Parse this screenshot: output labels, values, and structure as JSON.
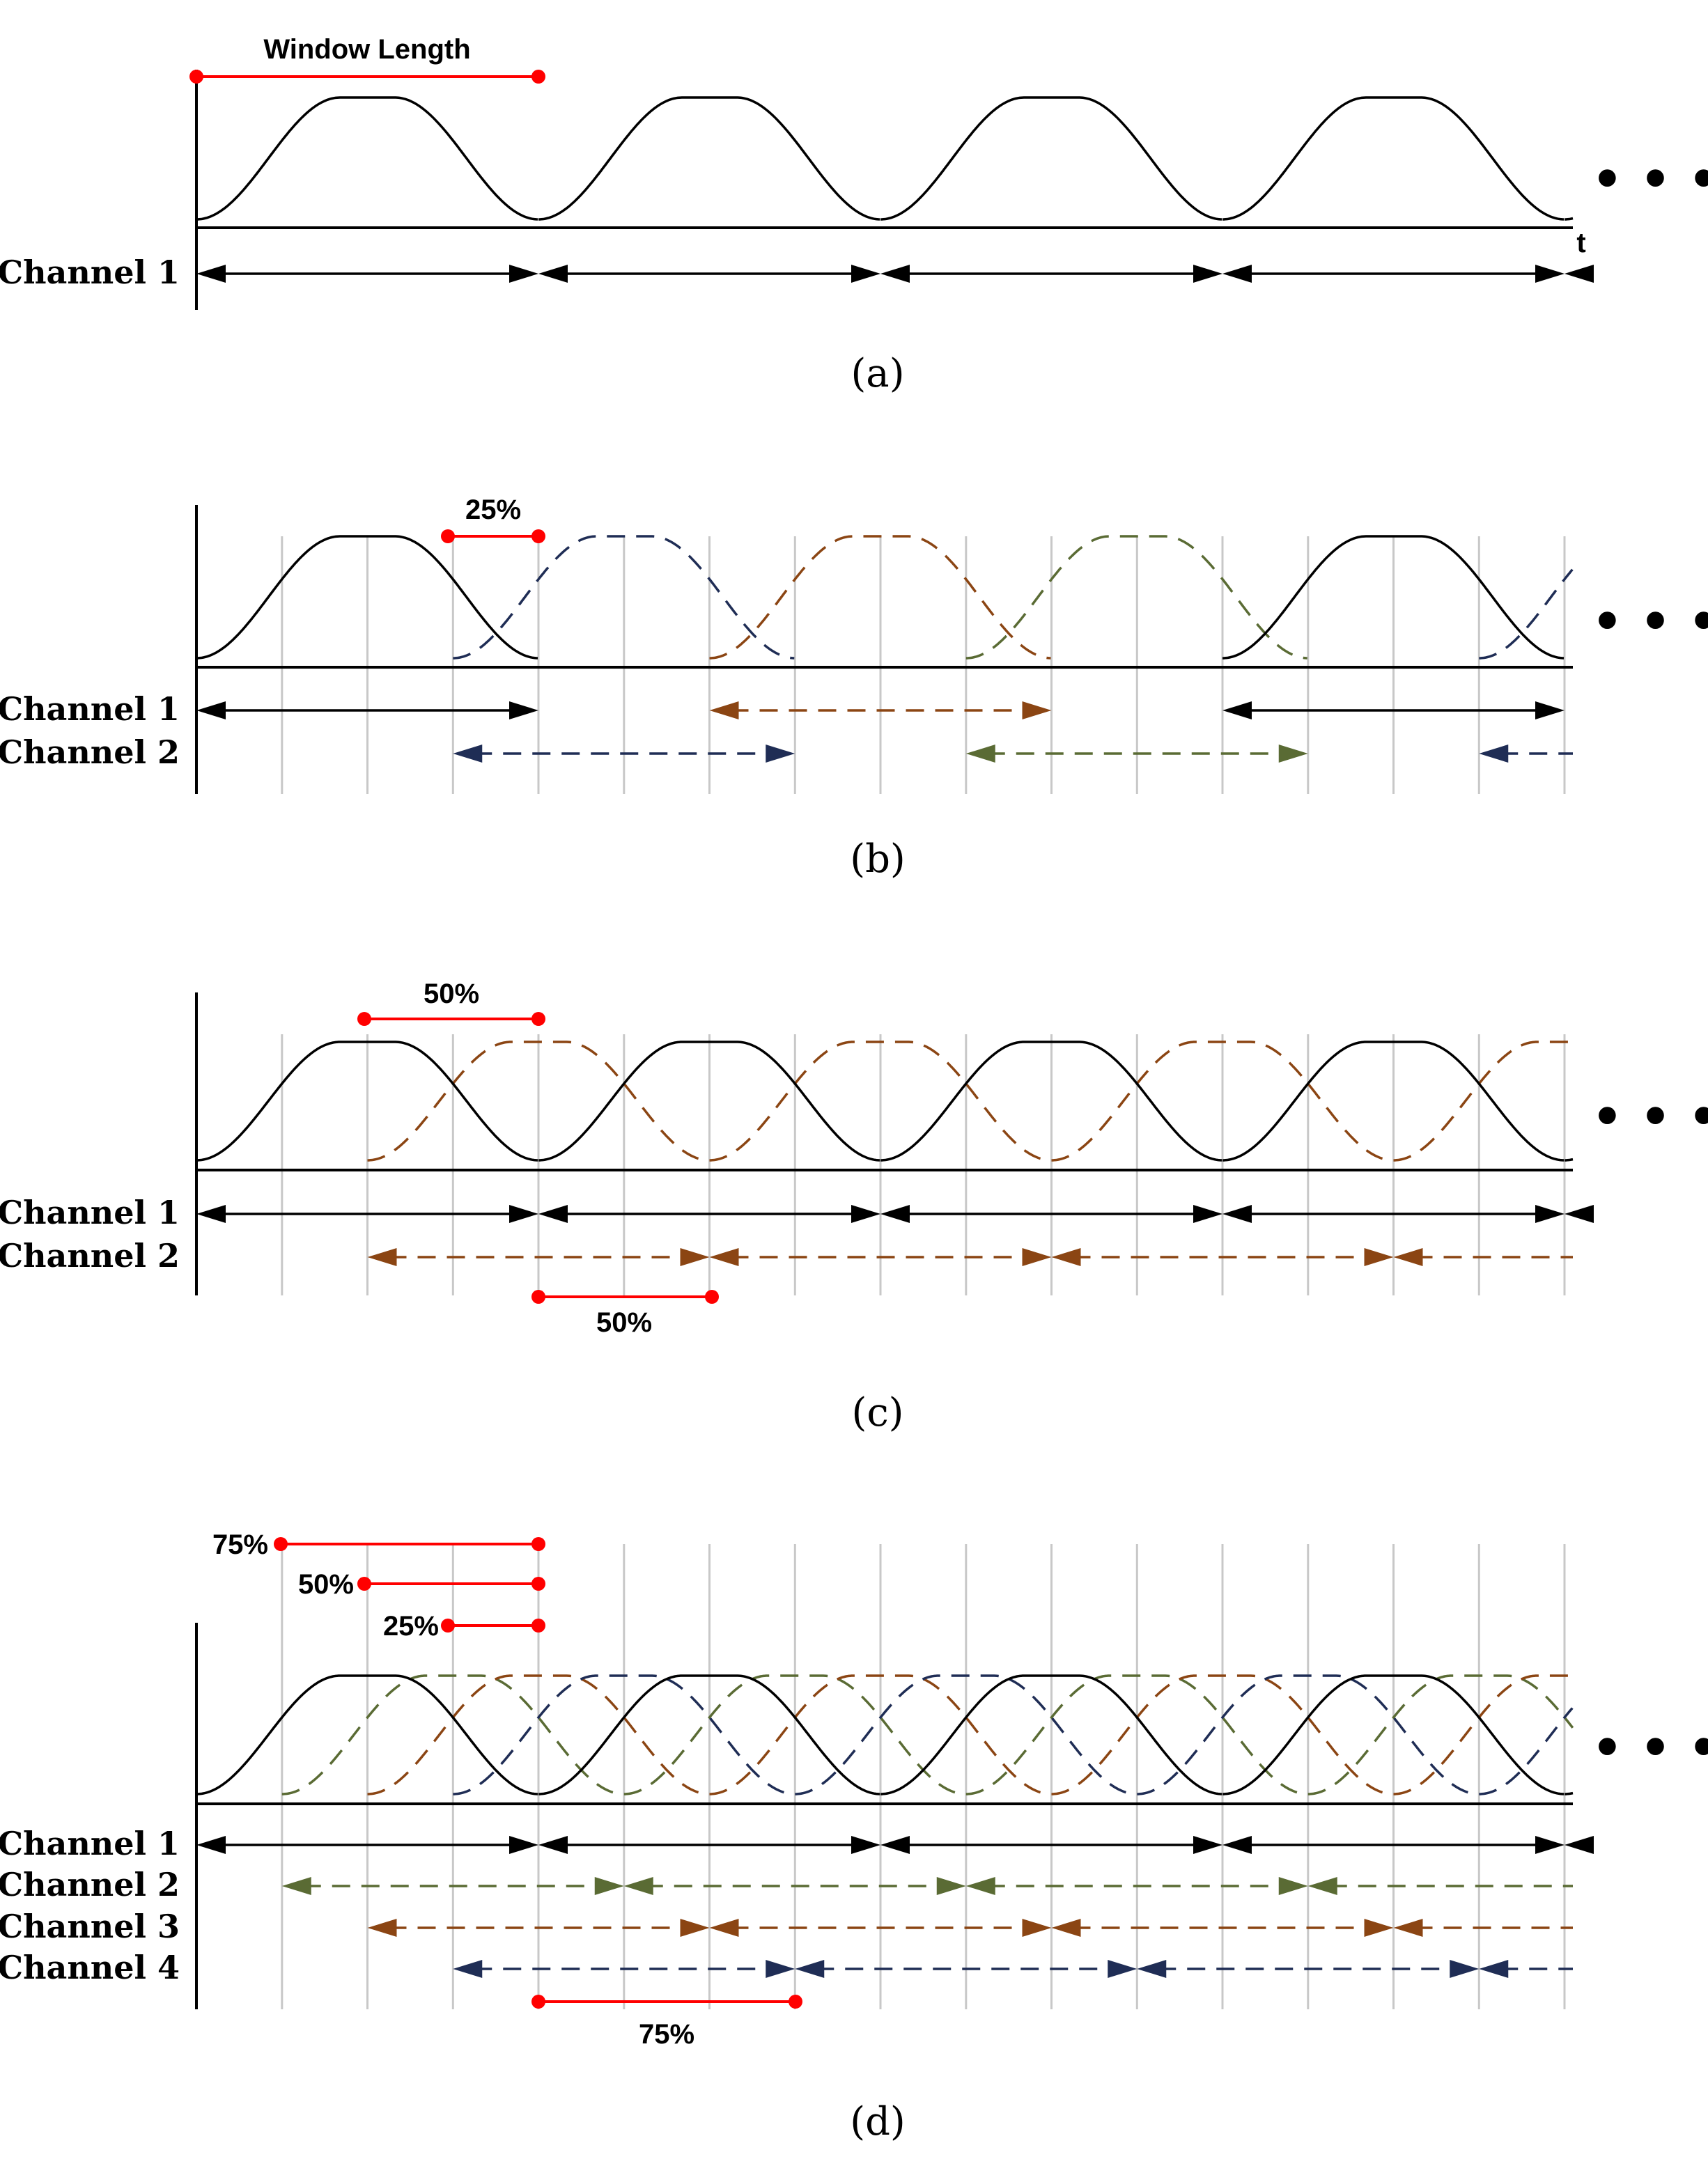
{
  "figure": {
    "colors": {
      "channel_1": "#000000",
      "channel_2_b": "#1f2d55",
      "channel_3_b": "#8b4513",
      "channel_4_b": "#5a6b34",
      "channel_2_cd": "#8b4513",
      "channel_2_d": "#5a6b34",
      "channel_3_d": "#8b4513",
      "channel_4_d": "#1f2d55",
      "marker": "#ff0000",
      "grid": "#c8c8c8"
    },
    "ellipsis": "• • •",
    "panels": [
      {
        "caption": "(a)",
        "overlap_percent": 0,
        "window_length_label": "Window Length",
        "time_axis_label": "t",
        "channel_labels": [
          "Channel 1"
        ],
        "marker_labels": []
      },
      {
        "caption": "(b)",
        "overlap_percent": 25,
        "channel_labels": [
          "Channel 1",
          "Channel 2"
        ],
        "marker_labels": [
          "25%"
        ]
      },
      {
        "caption": "(c)",
        "overlap_percent": 50,
        "channel_labels": [
          "Channel 1",
          "Channel 2"
        ],
        "marker_labels": [
          "50%",
          "50%"
        ]
      },
      {
        "caption": "(d)",
        "overlap_percent": 75,
        "channel_labels": [
          "Channel 1",
          "Channel 2",
          "Channel 3",
          "Channel 4"
        ],
        "marker_labels": [
          "75%",
          "50%",
          "25%",
          "75%"
        ]
      }
    ]
  }
}
